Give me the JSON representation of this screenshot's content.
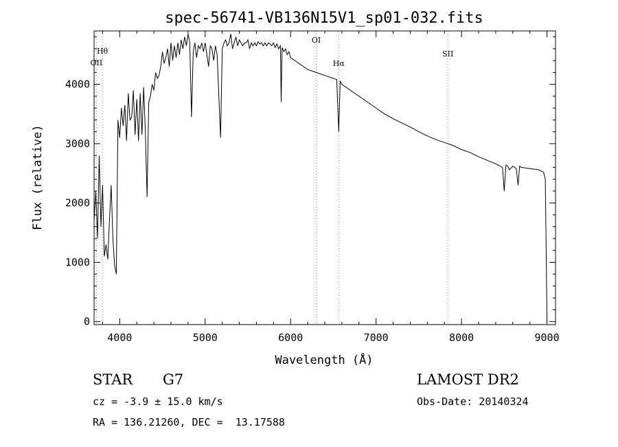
{
  "chart_data": {
    "type": "line",
    "title": "spec-56741-VB136N15V1_sp01-032.fits",
    "xlabel": "Wavelength (Å)",
    "ylabel": "Flux (relative)",
    "xlim": [
      3700,
      9100
    ],
    "ylim": [
      -50,
      4900
    ],
    "xticks": [
      4000,
      5000,
      6000,
      7000,
      8000,
      9000
    ],
    "yticks": [
      0,
      1000,
      2000,
      3000,
      4000
    ],
    "grid": false,
    "line_color": "#000000",
    "series": [
      {
        "x": [
          3700,
          3720,
          3740,
          3760,
          3780,
          3800,
          3820,
          3840,
          3860,
          3880,
          3900,
          3920,
          3940,
          3960,
          3980,
          4000,
          4020,
          4040,
          4060,
          4080,
          4100,
          4120,
          4140,
          4160,
          4180,
          4200,
          4220,
          4240,
          4260,
          4280,
          4300,
          4320,
          4340,
          4360,
          4380,
          4400,
          4420,
          4440,
          4460,
          4480,
          4500,
          4520,
          4540,
          4560,
          4580,
          4600,
          4620,
          4640,
          4660,
          4680,
          4700,
          4720,
          4740,
          4760,
          4780,
          4800,
          4820,
          4840,
          4860,
          4880,
          4900,
          4920,
          4940,
          4960,
          4980,
          5000,
          5020,
          5040,
          5060,
          5080,
          5100,
          5120,
          5140,
          5160,
          5180,
          5200,
          5220,
          5240,
          5260,
          5280,
          5300,
          5320,
          5340,
          5360,
          5380,
          5400,
          5420,
          5440,
          5460,
          5480,
          5500,
          5520,
          5540,
          5560,
          5580,
          5600,
          5620,
          5640,
          5660,
          5680,
          5700,
          5720,
          5740,
          5760,
          5780,
          5800,
          5820,
          5840,
          5860,
          5880,
          5890,
          5900,
          5920,
          5940,
          5960,
          5980,
          6000,
          6100,
          6200,
          6300,
          6400,
          6500,
          6540,
          6563,
          6580,
          6600,
          6700,
          6800,
          6900,
          7000,
          7100,
          7200,
          7300,
          7400,
          7500,
          7600,
          7700,
          7800,
          7900,
          8000,
          8100,
          8200,
          8300,
          8400,
          8480,
          8500,
          8520,
          8542,
          8560,
          8600,
          8640,
          8662,
          8680,
          8700,
          8800,
          8900,
          8960,
          8980,
          8990,
          9000
        ],
        "y": [
          1700,
          2200,
          1400,
          2800,
          1600,
          2300,
          1100,
          1300,
          1050,
          1700,
          2300,
          1400,
          950,
          800,
          3400,
          3100,
          3600,
          3300,
          3650,
          3050,
          3850,
          3400,
          3450,
          3900,
          3150,
          3750,
          3050,
          3850,
          3150,
          3950,
          3200,
          2100,
          3700,
          3800,
          4000,
          3900,
          4200,
          4100,
          4150,
          4300,
          4550,
          4350,
          4450,
          4600,
          4300,
          4700,
          4400,
          4650,
          4450,
          4700,
          4500,
          4750,
          4600,
          4800,
          4650,
          4850,
          4700,
          3450,
          4550,
          4700,
          4450,
          4650,
          4600,
          4700,
          4550,
          4700,
          4500,
          4300,
          4650,
          4600,
          4400,
          4650,
          4500,
          3800,
          3100,
          4600,
          4700,
          4750,
          4650,
          4700,
          4850,
          4600,
          4700,
          4800,
          4650,
          4750,
          4700,
          4650,
          4700,
          4700,
          4750,
          4600,
          4700,
          4650,
          4700,
          4650,
          4720,
          4680,
          4700,
          4650,
          4700,
          4650,
          4700,
          4680,
          4650,
          4700,
          4620,
          4680,
          4600,
          4650,
          3700,
          4620,
          4550,
          4600,
          4500,
          4550,
          4450,
          4350,
          4250,
          4200,
          4150,
          4100,
          4080,
          3200,
          4050,
          4000,
          3900,
          3800,
          3700,
          3600,
          3500,
          3420,
          3350,
          3280,
          3200,
          3130,
          3070,
          3020,
          2970,
          2900,
          2850,
          2780,
          2720,
          2660,
          2600,
          2200,
          2640,
          2620,
          2560,
          2620,
          2580,
          2300,
          2620,
          2600,
          2580,
          2560,
          2520,
          2400,
          1300,
          0
        ]
      }
    ],
    "line_markers": [
      {
        "label": "OII",
        "x": 3727
      },
      {
        "label": "Hθ",
        "x": 3797
      },
      {
        "label": "OI",
        "x": 6300
      },
      {
        "label": "Hα",
        "x": 6563
      },
      {
        "label": "SII",
        "x": 7840
      }
    ],
    "marker_color": "#c87070"
  },
  "info": {
    "object_type": "STAR",
    "subclass": "G7",
    "survey": "LAMOST DR2",
    "redshift_line": "cz = -3.9 ± 15.0 km/s",
    "obs_date_line": "Obs-Date: 20140324",
    "coords_line": "RA = 136.21260, DEC =  13.17588"
  }
}
